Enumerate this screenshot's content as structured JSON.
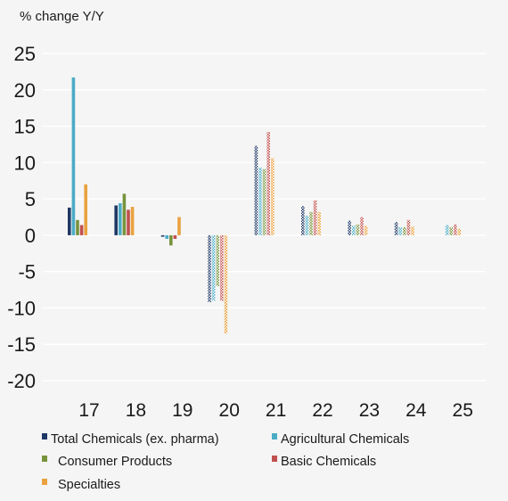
{
  "chart_data": {
    "type": "bar",
    "title": "",
    "ylabel": "% change Y/Y",
    "xlabel": "",
    "ylim": [
      -20,
      25
    ],
    "yticks": [
      25,
      20,
      15,
      10,
      5,
      0,
      -5,
      -10,
      -15,
      -20
    ],
    "grid": true,
    "legend_position": "bottom",
    "categories": [
      "17",
      "18",
      "19",
      "20",
      "21",
      "22",
      "23",
      "24",
      "25"
    ],
    "series": [
      {
        "name": "Total Chemicals (ex. pharma)",
        "color": "#1f3864",
        "values": [
          3.8,
          4.1,
          -0.2,
          -9.2,
          12.3,
          4.0,
          2.0,
          1.8,
          0.0
        ],
        "pattern": [
          false,
          false,
          false,
          true,
          true,
          true,
          true,
          true,
          true
        ]
      },
      {
        "name": "Agricultural Chemicals",
        "color": "#4bacc6",
        "values": [
          21.7,
          4.4,
          -0.5,
          -9.0,
          9.3,
          2.7,
          1.3,
          1.1,
          1.4
        ],
        "pattern": [
          false,
          false,
          false,
          true,
          true,
          true,
          true,
          true,
          true
        ]
      },
      {
        "name": "Consumer Products",
        "color": "#77933c",
        "values": [
          2.1,
          5.7,
          -1.4,
          -7.0,
          9.1,
          3.2,
          1.5,
          1.1,
          1.1
        ],
        "pattern": [
          false,
          false,
          false,
          true,
          true,
          true,
          true,
          true,
          true
        ]
      },
      {
        "name": "Basic Chemicals",
        "color": "#c0504d",
        "values": [
          1.4,
          3.5,
          -0.5,
          -9.0,
          14.2,
          4.8,
          2.5,
          2.1,
          1.5
        ],
        "pattern": [
          false,
          false,
          false,
          true,
          true,
          true,
          true,
          true,
          true
        ]
      },
      {
        "name": "Specialties",
        "color": "#e9a23f",
        "values": [
          7.0,
          3.9,
          2.5,
          -13.5,
          10.6,
          3.2,
          1.3,
          1.2,
          0.9
        ],
        "pattern": [
          false,
          false,
          false,
          true,
          true,
          true,
          true,
          true,
          true
        ]
      }
    ]
  }
}
